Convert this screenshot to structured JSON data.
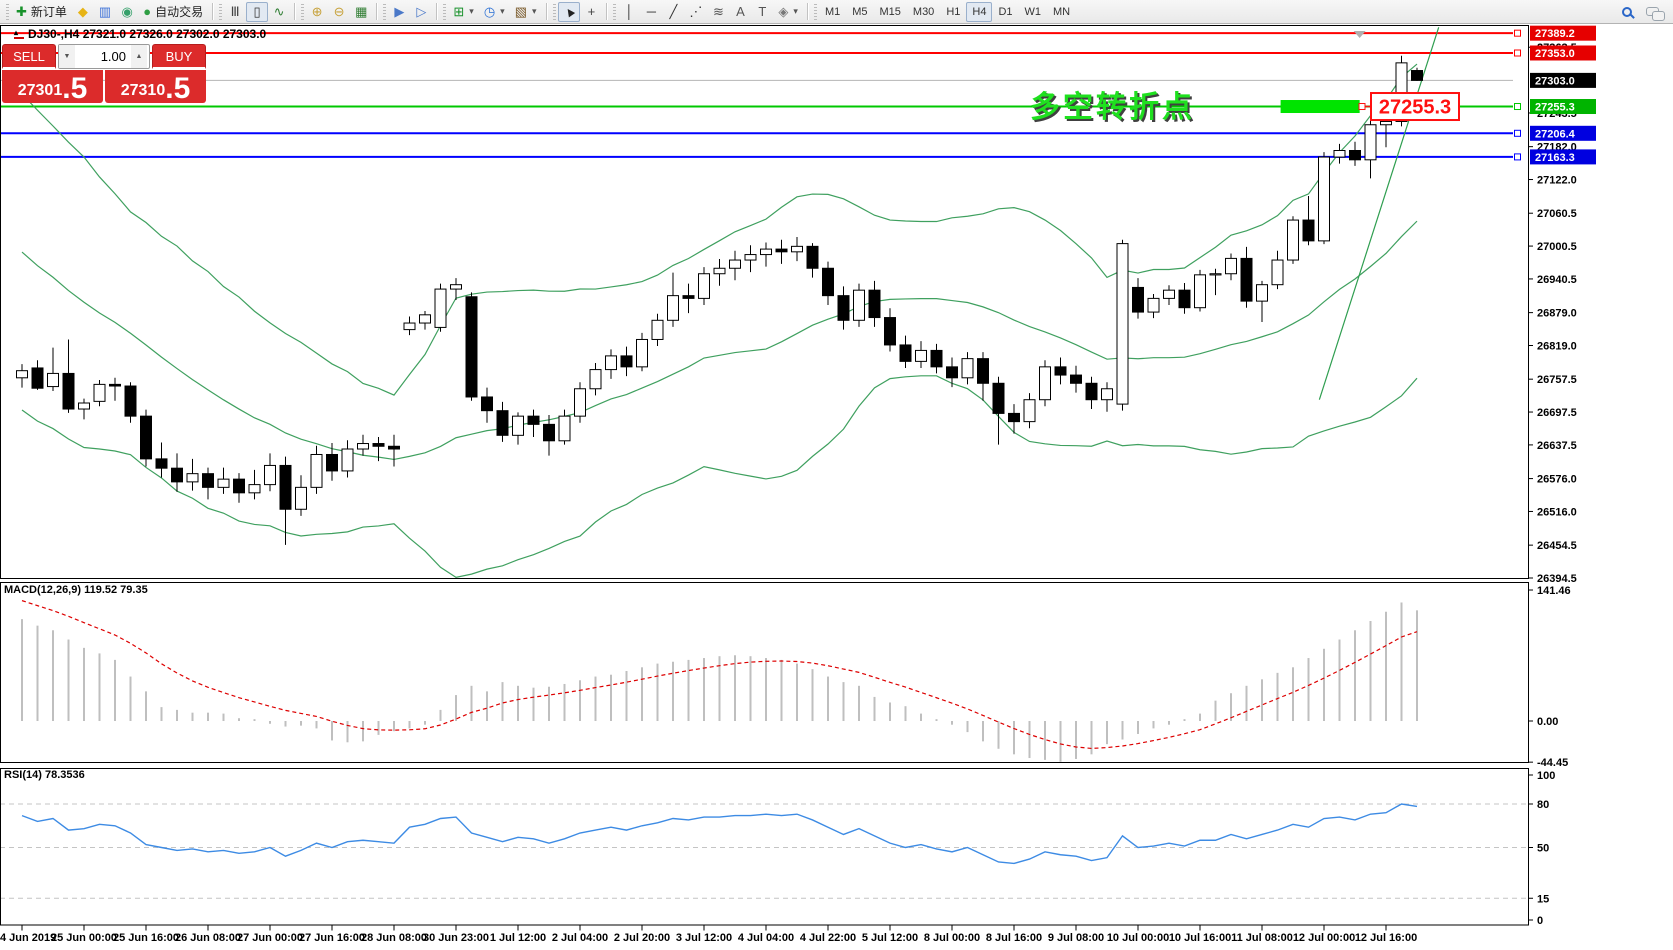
{
  "chart": {
    "title": "DJ30-,H4  27321.0 27326.0 27302.0 27303.0"
  },
  "toolbar": {
    "caret_glyph": "▾",
    "groups": [
      {
        "items": [
          {
            "name": "new-order-button",
            "glyph": "✚",
            "color": "#18922b",
            "label": "新订单"
          },
          {
            "name": "chart-window-button",
            "glyph": "◆",
            "color": "#e7b416"
          },
          {
            "name": "market-watch-button",
            "glyph": "▥",
            "color": "#3a6fd8"
          },
          {
            "name": "signals-button",
            "glyph": "◉",
            "color": "#35a06a"
          },
          {
            "name": "auto-trading-button",
            "glyph": "●",
            "color": "#2f9e44",
            "label": "自动交易"
          }
        ]
      },
      {
        "items": [
          {
            "name": "bar-chart-button",
            "glyph": "Ⅲ",
            "color": "#444444"
          },
          {
            "name": "candlestick-chart-button",
            "glyph": "▯",
            "color": "#333333",
            "active": true
          },
          {
            "name": "line-chart-button",
            "glyph": "∿",
            "color": "#2f7d32"
          }
        ]
      },
      {
        "items": [
          {
            "name": "zoom-in-button",
            "glyph": "⊕",
            "color": "#c7a23a"
          },
          {
            "name": "zoom-out-button",
            "glyph": "⊖",
            "color": "#c7a23a"
          },
          {
            "name": "tile-windows-button",
            "glyph": "▦",
            "color": "#2f7d32"
          }
        ]
      },
      {
        "items": [
          {
            "name": "auto-scroll-button",
            "glyph": "▶",
            "color": "#4a78c8"
          },
          {
            "name": "chart-shift-button",
            "glyph": "▷",
            "color": "#4a78c8"
          }
        ]
      },
      {
        "items": [
          {
            "name": "indicators-button",
            "glyph": "⊞",
            "color": "#18922b",
            "caret": true
          },
          {
            "name": "periods-button",
            "glyph": "◷",
            "color": "#2a6fd4",
            "caret": true
          },
          {
            "name": "templates-button",
            "glyph": "▧",
            "color": "#7a5a2a",
            "caret": true
          }
        ]
      },
      {
        "items": [
          {
            "name": "cursor-button",
            "glyph": "▲",
            "color": "#222222",
            "rot": true,
            "active": true
          },
          {
            "name": "crosshair-button",
            "glyph": "+",
            "color": "#444444"
          }
        ]
      },
      {
        "items": [
          {
            "name": "vertical-line-button",
            "glyph": "│",
            "color": "#333333"
          },
          {
            "name": "horizontal-line-button",
            "glyph": "─",
            "color": "#333333"
          },
          {
            "name": "trendline-button",
            "glyph": "╱",
            "color": "#333333"
          },
          {
            "name": "channel-button",
            "glyph": "⋰",
            "color": "#333333"
          },
          {
            "name": "fibonacci-button",
            "glyph": "≋",
            "color": "#555555"
          },
          {
            "name": "text-button",
            "glyph": "A",
            "color": "#555555"
          },
          {
            "name": "label-button",
            "glyph": "T",
            "color": "#555555"
          },
          {
            "name": "arrows-button",
            "glyph": "◈",
            "color": "#777777",
            "caret": true
          }
        ]
      }
    ],
    "timeframes": [
      "M1",
      "M5",
      "M15",
      "M30",
      "H1",
      "H4",
      "D1",
      "W1",
      "MN"
    ],
    "active_timeframe": "H4"
  },
  "trade_panel": {
    "sell_label": "SELL",
    "buy_label": "BUY",
    "volume": "1.00",
    "volume_down_icon": "▼",
    "volume_up_icon": "▲",
    "sell_price_main": "27301",
    "sell_price_frac": ".5",
    "buy_price_main": "27310",
    "buy_price_frac": ".5"
  },
  "chart_data": {
    "type": "candlestick",
    "symbol_period": "DJ30-,H4",
    "last_ohlc": {
      "open": 27321.0,
      "high": 27326.0,
      "low": 27302.0,
      "close": 27303.0
    },
    "candles": [
      [
        26760,
        26785,
        26742,
        26773
      ],
      [
        26778,
        26792,
        26738,
        26741
      ],
      [
        26744,
        26815,
        26736,
        26768
      ],
      [
        26768,
        26830,
        26696,
        26703
      ],
      [
        26703,
        26722,
        26684,
        26714
      ],
      [
        26717,
        26756,
        26708,
        26748
      ],
      [
        26748,
        26760,
        26718,
        26745
      ],
      [
        26745,
        26752,
        26678,
        26690
      ],
      [
        26690,
        26702,
        26598,
        26612
      ],
      [
        26612,
        26642,
        26578,
        26595
      ],
      [
        26595,
        26622,
        26552,
        26570
      ],
      [
        26570,
        26612,
        26554,
        26585
      ],
      [
        26585,
        26596,
        26538,
        26560
      ],
      [
        26560,
        26596,
        26548,
        26575
      ],
      [
        26575,
        26586,
        26532,
        26550
      ],
      [
        26550,
        26592,
        26538,
        26565
      ],
      [
        26565,
        26622,
        26553,
        26600
      ],
      [
        26600,
        26616,
        26455,
        26520
      ],
      [
        26520,
        26582,
        26508,
        26560
      ],
      [
        26560,
        26636,
        26548,
        26620
      ],
      [
        26620,
        26641,
        26572,
        26590
      ],
      [
        26590,
        26646,
        26578,
        26630
      ],
      [
        26630,
        26656,
        26618,
        26640
      ],
      [
        26640,
        26652,
        26608,
        26635
      ],
      [
        26635,
        26656,
        26598,
        26630
      ],
      [
        26848,
        26872,
        26838,
        26860
      ],
      [
        26860,
        26882,
        26848,
        26875
      ],
      [
        26852,
        26932,
        26844,
        26922
      ],
      [
        26922,
        26942,
        26902,
        26930
      ],
      [
        26908,
        26916,
        26718,
        26725
      ],
      [
        26725,
        26742,
        26678,
        26700
      ],
      [
        26700,
        26716,
        26643,
        26655
      ],
      [
        26655,
        26697,
        26638,
        26690
      ],
      [
        26690,
        26702,
        26652,
        26675
      ],
      [
        26675,
        26692,
        26618,
        26645
      ],
      [
        26645,
        26702,
        26638,
        26690
      ],
      [
        26690,
        26752,
        26678,
        26740
      ],
      [
        26740,
        26787,
        26728,
        26775
      ],
      [
        26775,
        26812,
        26758,
        26800
      ],
      [
        26800,
        26817,
        26763,
        26780
      ],
      [
        26780,
        26842,
        26772,
        26830
      ],
      [
        26830,
        26877,
        26818,
        26865
      ],
      [
        26865,
        26952,
        26853,
        26910
      ],
      [
        26910,
        26932,
        26878,
        26905
      ],
      [
        26905,
        26962,
        26893,
        26950
      ],
      [
        26950,
        26977,
        26928,
        26960
      ],
      [
        26960,
        26992,
        26938,
        26975
      ],
      [
        26975,
        27002,
        26953,
        26985
      ],
      [
        26985,
        27007,
        26963,
        26995
      ],
      [
        26995,
        27012,
        26968,
        26990
      ],
      [
        26990,
        27017,
        26973,
        27000
      ],
      [
        27000,
        27006,
        26943,
        26960
      ],
      [
        26960,
        26972,
        26893,
        26910
      ],
      [
        26910,
        26927,
        26848,
        26865
      ],
      [
        26865,
        26932,
        26853,
        26920
      ],
      [
        26920,
        26937,
        26853,
        26870
      ],
      [
        26870,
        26887,
        26808,
        26820
      ],
      [
        26820,
        26837,
        26778,
        26790
      ],
      [
        26790,
        26827,
        26778,
        26810
      ],
      [
        26810,
        26822,
        26768,
        26780
      ],
      [
        26780,
        26797,
        26743,
        26760
      ],
      [
        26760,
        26807,
        26748,
        26795
      ],
      [
        26795,
        26807,
        26718,
        26750
      ],
      [
        26750,
        26762,
        26638,
        26695
      ],
      [
        26695,
        26712,
        26658,
        26680
      ],
      [
        26680,
        26732,
        26668,
        26720
      ],
      [
        26720,
        26792,
        26708,
        26780
      ],
      [
        26780,
        26797,
        26748,
        26765
      ],
      [
        26765,
        26782,
        26733,
        26750
      ],
      [
        26750,
        26762,
        26703,
        26720
      ],
      [
        26720,
        26752,
        26698,
        26740
      ],
      [
        26712,
        27012,
        26700,
        27005
      ],
      [
        26925,
        26942,
        26868,
        26880
      ],
      [
        26880,
        26913,
        26869,
        26905
      ],
      [
        26905,
        26929,
        26893,
        26920
      ],
      [
        26920,
        26933,
        26877,
        26888
      ],
      [
        26888,
        26957,
        26881,
        26948
      ],
      [
        26948,
        26959,
        26911,
        26950
      ],
      [
        26950,
        26987,
        26938,
        26978
      ],
      [
        26978,
        26999,
        26888,
        26900
      ],
      [
        26900,
        26937,
        26862,
        26930
      ],
      [
        26930,
        26992,
        26922,
        26975
      ],
      [
        26975,
        27055,
        26968,
        27048
      ],
      [
        27048,
        27092,
        27002,
        27010
      ],
      [
        27010,
        27172,
        27004,
        27163
      ],
      [
        27163,
        27187,
        27151,
        27175
      ],
      [
        27175,
        27191,
        27147,
        27158
      ],
      [
        27158,
        27243,
        27124,
        27222
      ],
      [
        27222,
        27242,
        27181,
        27228
      ],
      [
        27228,
        27348,
        27219,
        27335
      ],
      [
        27321,
        27326,
        27302,
        27303
      ]
    ],
    "bollinger": {
      "period": 20,
      "deviation": 2,
      "color": "#3fa05f"
    },
    "price_axis": {
      "ticks": [
        {
          "label": "27363.5",
          "value": 27363.5
        },
        {
          "label": "27243.5",
          "value": 27243.5
        },
        {
          "label": "27182.0",
          "value": 27182.0
        },
        {
          "label": "27122.0",
          "value": 27122.0
        },
        {
          "label": "27060.5",
          "value": 27060.5
        },
        {
          "label": "27000.5",
          "value": 27000.5
        },
        {
          "label": "26940.5",
          "value": 26940.5
        },
        {
          "label": "26879.0",
          "value": 26879.0
        },
        {
          "label": "26819.0",
          "value": 26819.0
        },
        {
          "label": "26757.5",
          "value": 26757.5
        },
        {
          "label": "26697.5",
          "value": 26697.5
        },
        {
          "label": "26637.5",
          "value": 26637.5
        },
        {
          "label": "26576.0",
          "value": 26576.0
        },
        {
          "label": "26516.0",
          "value": 26516.0
        },
        {
          "label": "26454.5",
          "value": 26454.5
        },
        {
          "label": "26394.5",
          "value": 26394.5
        }
      ],
      "badges": [
        {
          "label": "27389.2",
          "value": 27389.2,
          "color": "#e60000",
          "anchor": true,
          "line": {
            "color": "#ff0000",
            "width": 2
          }
        },
        {
          "label": "27353.0",
          "value": 27353.0,
          "color": "#e60000",
          "anchor": true,
          "line": {
            "color": "#ff0000",
            "width": 2
          }
        },
        {
          "label": "27303.0",
          "value": 27303.0,
          "color": "#000000",
          "anchor": false,
          "line": {
            "color": "#b4b4b4",
            "width": 1
          }
        },
        {
          "label": "27255.3",
          "value": 27255.3,
          "color": "#00b400",
          "anchor": true,
          "line": {
            "color": "#00c800",
            "width": 2
          }
        },
        {
          "label": "27206.4",
          "value": 27206.4,
          "color": "#0000e0",
          "anchor": true,
          "line": {
            "color": "#0000ff",
            "width": 2
          }
        },
        {
          "label": "27163.3",
          "value": 27163.3,
          "color": "#0000e0",
          "anchor": true,
          "line": {
            "color": "#0000ff",
            "width": 2
          }
        }
      ]
    },
    "time_labels": [
      "4 Jun 2019",
      "25 Jun 00:00",
      "25 Jun 16:00",
      "26 Jun 08:00",
      "27 Jun 00:00",
      "27 Jun 16:00",
      "28 Jun 08:00",
      "30 Jun 23:00",
      "1 Jul 12:00",
      "2 Jul 04:00",
      "2 Jul 20:00",
      "3 Jul 12:00",
      "4 Jul 04:00",
      "4 Jul 22:00",
      "5 Jul 12:00",
      "8 Jul 00:00",
      "8 Jul 16:00",
      "9 Jul 08:00",
      "10 Jul 00:00",
      "10 Jul 16:00",
      "11 Jul 08:00",
      "12 Jul 00:00",
      "12 Jul 16:00"
    ],
    "macd": {
      "label": "MACD(12,26,9) 119.52 79.35",
      "histogram": [
        110,
        103,
        98,
        88,
        79,
        73,
        66,
        48,
        32,
        15,
        12,
        9,
        9,
        8,
        3,
        2,
        -3,
        -6,
        -5,
        -8,
        -21,
        -23,
        -22,
        -15,
        -11,
        -8,
        -4,
        12,
        28,
        38,
        32,
        42,
        38,
        36,
        37,
        40,
        44,
        48,
        50,
        54,
        58,
        62,
        64,
        66,
        68,
        70,
        71,
        70,
        68,
        66,
        62,
        56,
        48,
        42,
        38,
        26,
        20,
        16,
        8,
        2,
        -4,
        -12,
        -22,
        -30,
        -36,
        -40,
        -42,
        -44,
        -41,
        -36,
        -25,
        -20,
        -14,
        -8,
        -4,
        2,
        8,
        22,
        30,
        38,
        45,
        52,
        58,
        68,
        78,
        88,
        98,
        108,
        118,
        128,
        119.52
      ],
      "signal_start": 135,
      "axis": [
        {
          "label": "141.46",
          "value": 141.46
        },
        {
          "label": "0.00",
          "value": 0
        },
        {
          "label": "-44.45",
          "value": -44.45
        }
      ]
    },
    "rsi": {
      "label": "RSI(14) 78.3536",
      "values": [
        72,
        68,
        70,
        62,
        63,
        66,
        65,
        60,
        52,
        50,
        48,
        49,
        47,
        48,
        46,
        47,
        50,
        44,
        48,
        53,
        50,
        54,
        55,
        54,
        53,
        64,
        66,
        70,
        71,
        60,
        57,
        54,
        57,
        56,
        53,
        56,
        60,
        62,
        64,
        62,
        65,
        67,
        70,
        69,
        71,
        71,
        72,
        72,
        73,
        72,
        73,
        69,
        64,
        59,
        63,
        58,
        53,
        50,
        52,
        49,
        47,
        50,
        45,
        40,
        39,
        42,
        47,
        45,
        44,
        41,
        43,
        58,
        50,
        51,
        53,
        51,
        55,
        55,
        59,
        56,
        59,
        62,
        66,
        64,
        70,
        71,
        69,
        73,
        74,
        80,
        78.35
      ],
      "levels": [
        80,
        50,
        15
      ],
      "axis": [
        {
          "label": "100",
          "value": 100
        },
        {
          "label": "80",
          "value": 80
        },
        {
          "label": "50",
          "value": 50
        },
        {
          "label": "15",
          "value": 15
        },
        {
          "label": "0",
          "value": 0
        }
      ]
    },
    "annotations": {
      "text_label": {
        "text": "多空转折点",
        "color": "#1fe01f"
      },
      "highlight_box": {
        "from_bar": 81.2,
        "to_bar": 86.3,
        "price": 27255.3,
        "color": "#00e400"
      },
      "callout": {
        "text": "27255.3",
        "price": 27255.3,
        "color": "#ff1010"
      },
      "trendline": {
        "from_bar": 83.7,
        "from_price": 26720,
        "to_bar": 91.4,
        "to_price": 27400,
        "color": "#2f9e50"
      },
      "scroll_marker_bar": 86.3
    }
  }
}
